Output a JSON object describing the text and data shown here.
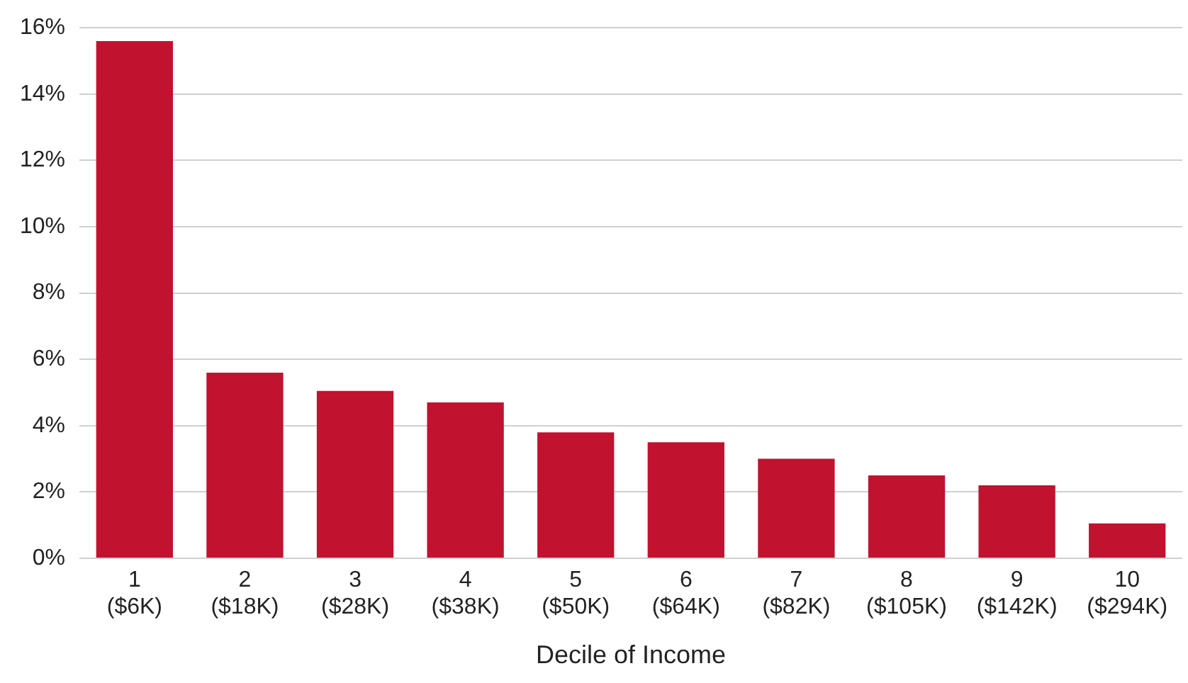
{
  "chart_data": {
    "type": "bar",
    "xlabel": "Decile of Income",
    "categories": [
      "1\n($6K)",
      "2\n($18K)",
      "3\n($28K)",
      "4\n($38K)",
      "5\n($50K)",
      "6\n($64K)",
      "7\n($82K)",
      "8\n($105K)",
      "9\n($142K)",
      "10\n($294K)"
    ],
    "values": [
      15.6,
      5.6,
      5.05,
      4.7,
      3.8,
      3.5,
      3.0,
      2.5,
      2.2,
      1.05
    ],
    "color": "#c1122f",
    "ylim": [
      0,
      16
    ],
    "yticks": [
      {
        "value": 0,
        "label": "0%"
      },
      {
        "value": 2,
        "label": "2%"
      },
      {
        "value": 4,
        "label": "4%"
      },
      {
        "value": 6,
        "label": "6%"
      },
      {
        "value": 8,
        "label": "8%"
      },
      {
        "value": 10,
        "label": "10%"
      },
      {
        "value": 12,
        "label": "12%"
      },
      {
        "value": 14,
        "label": "14%"
      },
      {
        "value": 16,
        "label": "16%"
      }
    ],
    "grid": "y",
    "legend": false
  }
}
